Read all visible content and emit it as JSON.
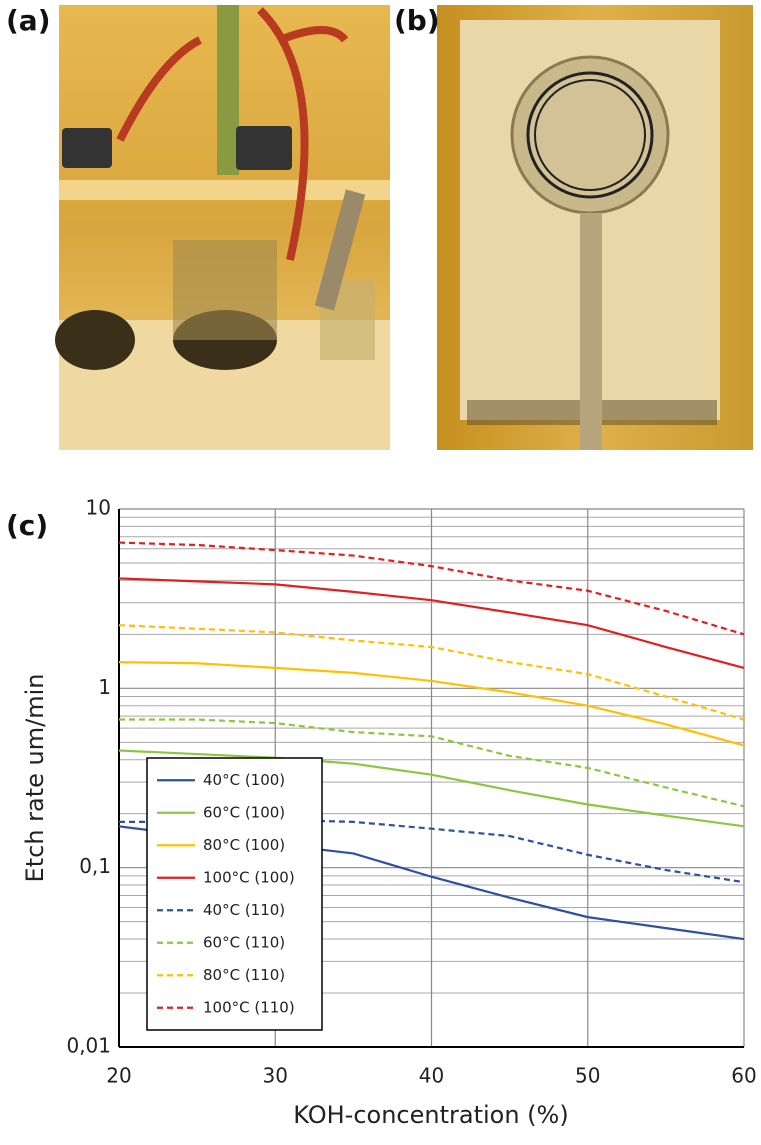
{
  "figure": {
    "panel_labels": [
      "(a)",
      "(b)",
      "(c)"
    ]
  },
  "chart_data": {
    "type": "line",
    "xlabel": "KOH-concentration (%)",
    "ylabel": "Etch rate um/min",
    "x": [
      20,
      25,
      30,
      35,
      40,
      45,
      50,
      55,
      60
    ],
    "xlim": [
      20,
      60
    ],
    "xticks": [
      20,
      30,
      40,
      50,
      60
    ],
    "ylim": [
      0.01,
      10
    ],
    "yscale": "log",
    "yticks": [
      {
        "value": 0.01,
        "label": "0,01"
      },
      {
        "value": 0.1,
        "label": "0,1"
      },
      1,
      10
    ],
    "grid": true,
    "minor_grid": true,
    "legend": "lower left",
    "series": [
      {
        "name": "40°C (100)",
        "color": "#2f4f9f",
        "style": "solid",
        "values": [
          0.17,
          0.15,
          0.135,
          0.12,
          0.089,
          0.068,
          0.053,
          0.046,
          0.04
        ]
      },
      {
        "name": "60°C (100)",
        "color": "#8dc63f",
        "style": "solid",
        "values": [
          0.45,
          0.43,
          0.41,
          0.38,
          0.33,
          0.27,
          0.225,
          0.195,
          0.17
        ]
      },
      {
        "name": "80°C (100)",
        "color": "#ffc000",
        "style": "solid",
        "values": [
          1.4,
          1.38,
          1.3,
          1.22,
          1.1,
          0.95,
          0.8,
          0.63,
          0.48
        ]
      },
      {
        "name": "100°C (100)",
        "color": "#e02020",
        "style": "solid",
        "values": [
          4.1,
          3.95,
          3.8,
          3.45,
          3.1,
          2.65,
          2.25,
          1.7,
          1.3
        ]
      },
      {
        "name": "40°C (110)",
        "color": "#2f4f9f",
        "style": "dashed",
        "values": [
          0.18,
          0.18,
          0.185,
          0.18,
          0.165,
          0.15,
          0.118,
          0.097,
          0.083
        ]
      },
      {
        "name": "60°C (110)",
        "color": "#8dc63f",
        "style": "dashed",
        "values": [
          0.67,
          0.67,
          0.64,
          0.57,
          0.54,
          0.42,
          0.36,
          0.28,
          0.22
        ]
      },
      {
        "name": "80°C (110)",
        "color": "#ffc000",
        "style": "dashed",
        "values": [
          2.25,
          2.15,
          2.05,
          1.85,
          1.7,
          1.4,
          1.2,
          0.9,
          0.67
        ]
      },
      {
        "name": "100°C (110)",
        "color": "#e02020",
        "style": "dashed",
        "values": [
          6.5,
          6.3,
          5.9,
          5.5,
          4.8,
          4.0,
          3.5,
          2.7,
          2.0
        ]
      }
    ]
  }
}
